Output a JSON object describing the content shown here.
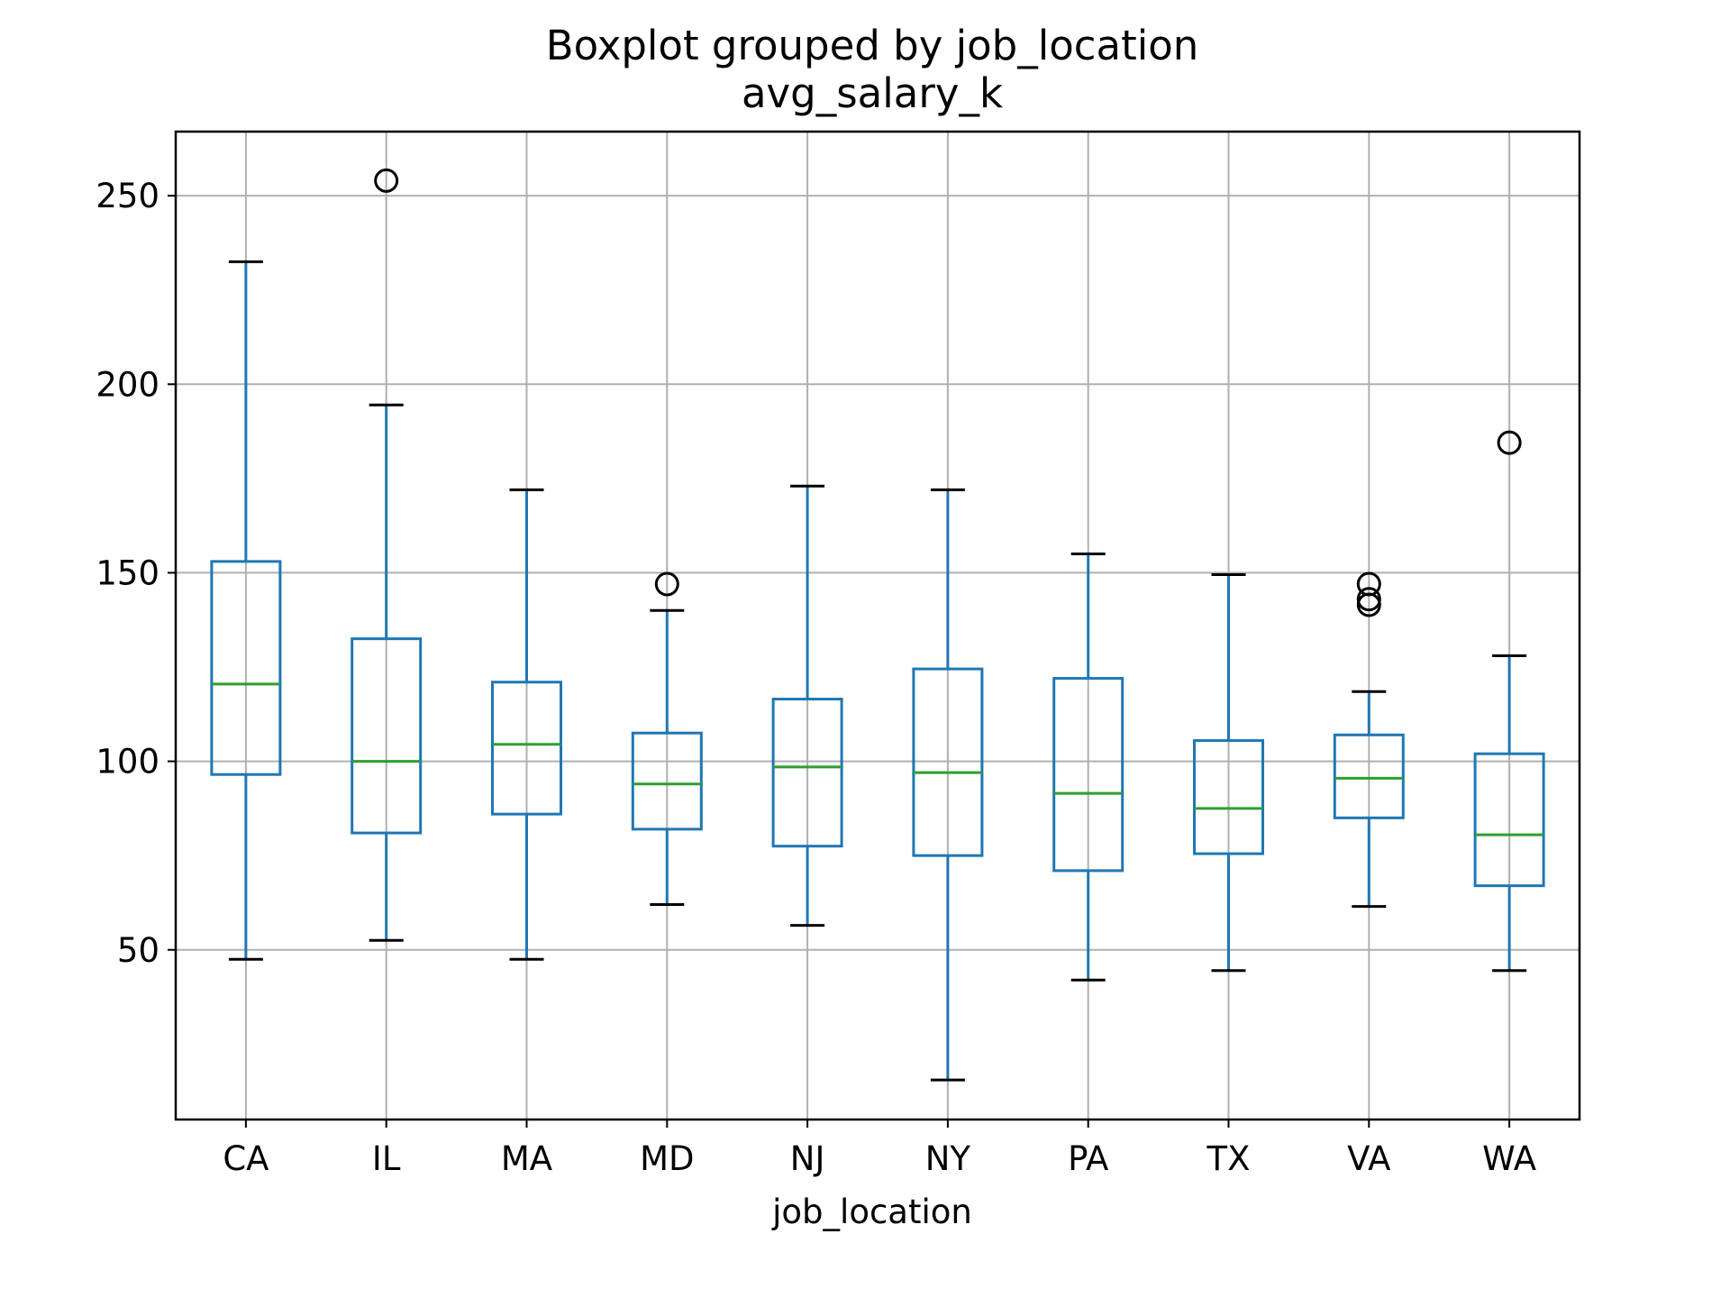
{
  "chart_data": {
    "type": "boxplot",
    "title": "Boxplot grouped by job_location",
    "subtitle": "avg_salary_k",
    "xlabel": "job_location",
    "ylabel": "",
    "ylim": [
      5,
      267
    ],
    "yticks": [
      50,
      100,
      150,
      200,
      250
    ],
    "grid": true,
    "categories": [
      "CA",
      "IL",
      "MA",
      "MD",
      "NJ",
      "NY",
      "PA",
      "TX",
      "VA",
      "WA"
    ],
    "boxes": [
      {
        "label": "CA",
        "whislo": 47.5,
        "q1": 96.5,
        "med": 120.5,
        "q3": 153,
        "whishi": 232.5,
        "fliers": []
      },
      {
        "label": "IL",
        "whislo": 52.5,
        "q1": 81,
        "med": 100,
        "q3": 132.5,
        "whishi": 194.5,
        "fliers": [
          254
        ]
      },
      {
        "label": "MA",
        "whislo": 47.5,
        "q1": 86,
        "med": 104.5,
        "q3": 121,
        "whishi": 172,
        "fliers": []
      },
      {
        "label": "MD",
        "whislo": 62,
        "q1": 82,
        "med": 94,
        "q3": 107.5,
        "whishi": 140,
        "fliers": [
          147
        ]
      },
      {
        "label": "NJ",
        "whislo": 56.5,
        "q1": 77.5,
        "med": 98.5,
        "q3": 116.5,
        "whishi": 173,
        "fliers": []
      },
      {
        "label": "NY",
        "whislo": 15.5,
        "q1": 75,
        "med": 97,
        "q3": 124.5,
        "whishi": 172,
        "fliers": []
      },
      {
        "label": "PA",
        "whislo": 42,
        "q1": 71,
        "med": 91.5,
        "q3": 122,
        "whishi": 155,
        "fliers": []
      },
      {
        "label": "TX",
        "whislo": 44.5,
        "q1": 75.5,
        "med": 87.5,
        "q3": 105.5,
        "whishi": 149.5,
        "fliers": []
      },
      {
        "label": "VA",
        "whislo": 61.5,
        "q1": 85,
        "med": 95.5,
        "q3": 107,
        "whishi": 118.5,
        "fliers": [
          141.5,
          143,
          147
        ]
      },
      {
        "label": "WA",
        "whislo": 44.5,
        "q1": 67,
        "med": 80.5,
        "q3": 102,
        "whishi": 128,
        "fliers": [
          184.5
        ]
      }
    ],
    "colors": {
      "box": "#1f77b4",
      "median": "#2ca02c",
      "cap": "#000000",
      "flier": "#000000",
      "grid": "#b0b0b0",
      "frame": "#000000"
    }
  }
}
